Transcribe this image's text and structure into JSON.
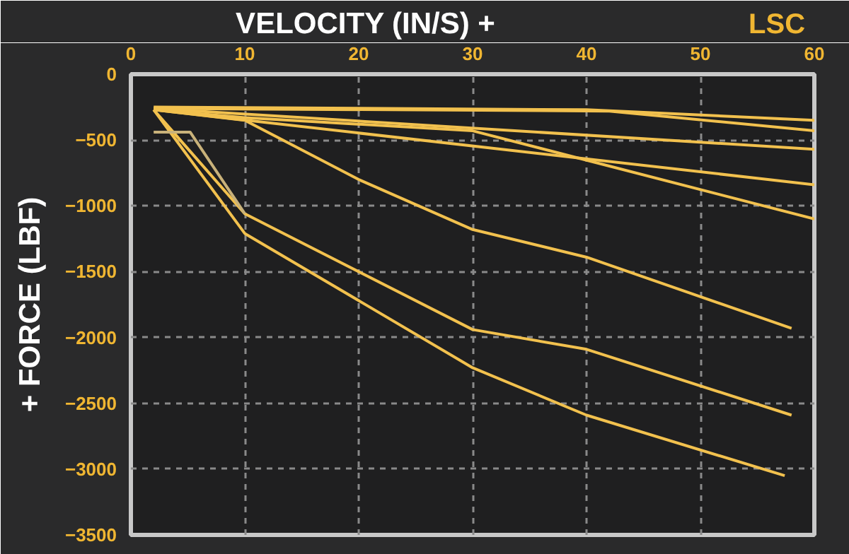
{
  "chart_data": {
    "type": "line",
    "title": "LSC",
    "xlabel": "VELOCITY (IN/S) +",
    "ylabel": "+ FORCE (LBF)",
    "xlim": [
      0,
      60
    ],
    "ylim": [
      -3500,
      0
    ],
    "xticks": [
      0,
      10,
      20,
      30,
      40,
      50,
      60
    ],
    "yticks": [
      0,
      -500,
      -1000,
      -1500,
      -2000,
      -2500,
      -3000,
      -3500
    ],
    "grid": true,
    "marker": "none",
    "line_style": "solid",
    "series": [
      {
        "color": "#f2c14e",
        "x": [
          2,
          40,
          60
        ],
        "values": [
          -250,
          -270,
          -350
        ]
      },
      {
        "color": "#f2c14e",
        "x": [
          2,
          42,
          60
        ],
        "values": [
          -260,
          -280,
          -430
        ]
      },
      {
        "color": "#f2c14e",
        "x": [
          2,
          60
        ],
        "values": [
          -260,
          -570
        ]
      },
      {
        "color": "#f2c14e",
        "x": [
          2,
          60
        ],
        "values": [
          -270,
          -840
        ]
      },
      {
        "color": "#f2c14e",
        "x": [
          2,
          10,
          30,
          60
        ],
        "values": [
          -270,
          -330,
          -430,
          -1100
        ]
      },
      {
        "color": "#f2c14e",
        "x": [
          2,
          10,
          20,
          30,
          40,
          58
        ],
        "values": [
          -270,
          -350,
          -800,
          -1180,
          -1390,
          -1930
        ]
      },
      {
        "color": "#f2c14e",
        "x": [
          2,
          10,
          30,
          40,
          58
        ],
        "values": [
          -270,
          -1060,
          -1940,
          -2090,
          -2590
        ]
      },
      {
        "color": "#f2c14e",
        "x": [
          2,
          10,
          30,
          40,
          57.4
        ],
        "values": [
          -270,
          -1210,
          -2230,
          -2590,
          -3050
        ]
      },
      {
        "color": "#c9b27a",
        "x": [
          2,
          5.2,
          10
        ],
        "values": [
          -440,
          -440,
          -1060
        ]
      }
    ]
  }
}
